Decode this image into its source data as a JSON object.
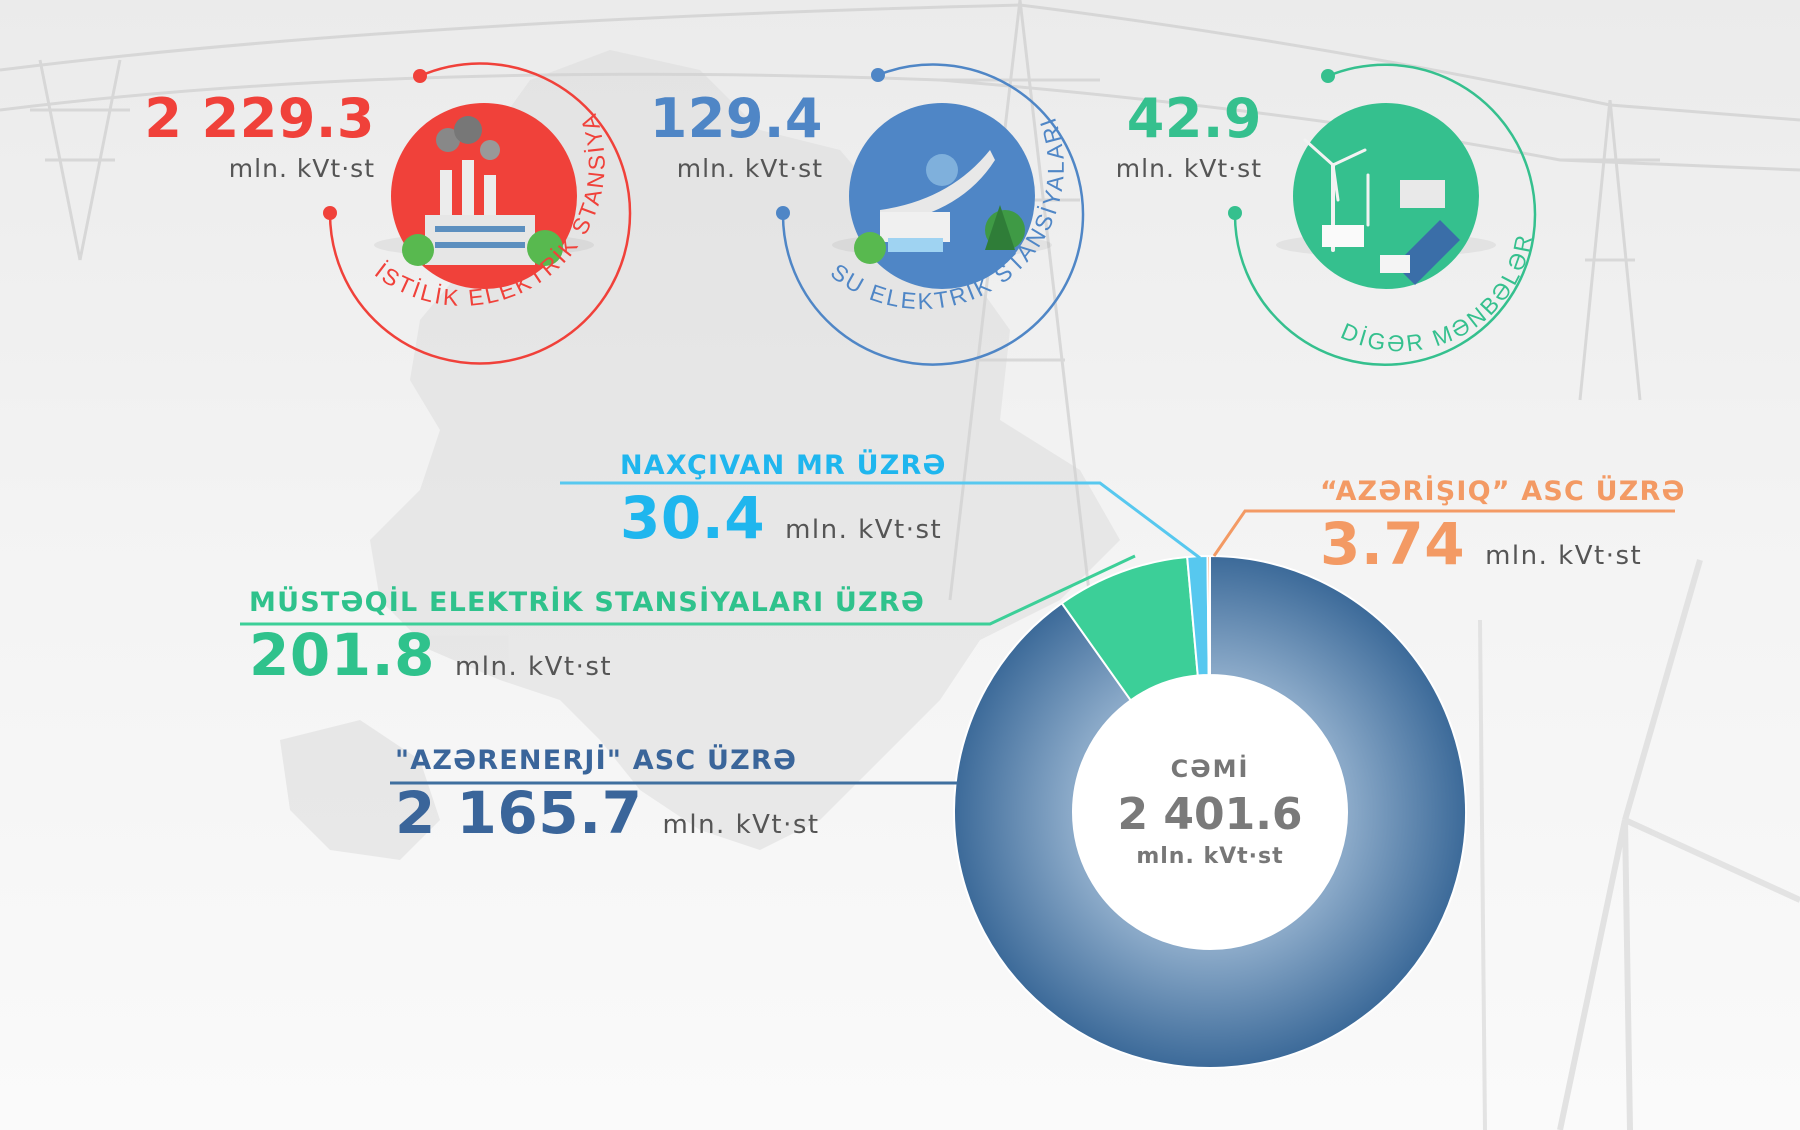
{
  "sources": [
    {
      "value": "2 229.3",
      "unit": "mln. kVt·st",
      "label": "İSTİLİK ELEKTRİK STANSİYALARI",
      "color": "#f0413a",
      "icon": "thermal-plant-icon"
    },
    {
      "value": "129.4",
      "unit": "mln. kVt·st",
      "label": "SU ELEKTRİK STANSİYALARI",
      "color": "#4f86c6",
      "icon": "hydro-dam-icon"
    },
    {
      "value": "42.9",
      "unit": "mln. kVt·st",
      "label": "DİGƏR MƏNBƏLƏR",
      "color": "#35c08e",
      "icon": "wind-solar-icon"
    }
  ],
  "breakdown": {
    "naxcivan": {
      "title": "NAXÇIVAN MR ÜZRƏ",
      "value": "30.4",
      "unit": "mln. kVt·st"
    },
    "azerisiq": {
      "title": "“AZƏRİŞIQ” ASC ÜZRƏ",
      "value": "3.74",
      "unit": "mln. kVt·st"
    },
    "mustaqil": {
      "title": "MÜSTƏQİL ELEKTRİK STANSİYALARI ÜZRƏ",
      "value": "201.8",
      "unit": "mln. kVt·st"
    },
    "azerenerji": {
      "title": "\"AZƏRENERJİ\" ASC ÜZRƏ",
      "value": "2 165.7",
      "unit": "mln. kVt·st"
    }
  },
  "total": {
    "label": "CƏMİ",
    "value": "2 401.6",
    "unit": "mln. kVt·st"
  },
  "chart_data": {
    "type": "pie",
    "donut": true,
    "unit": "mln. kVt·st",
    "total": 2401.6,
    "slices": [
      {
        "label": "\"AZƏRENERJİ\" ASC ÜZRƏ",
        "value": 2165.7,
        "color": "#3f6f9f"
      },
      {
        "label": "MÜSTƏQİL ELEKTRİK STANSİYALARI ÜZRƏ",
        "value": 201.8,
        "color": "#3ccf98"
      },
      {
        "label": "NAXÇIVAN MR ÜZRƏ",
        "value": 30.4,
        "color": "#57c8ef"
      },
      {
        "label": "“AZƏRİŞIQ” ASC ÜZRƏ",
        "value": 3.74,
        "color": "#f39a64"
      }
    ]
  }
}
